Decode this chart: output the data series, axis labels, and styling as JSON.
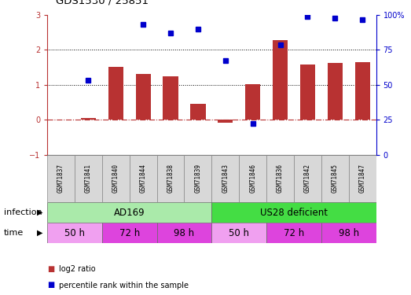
{
  "title": "GDS1530 / 25851",
  "samples": [
    "GSM71837",
    "GSM71841",
    "GSM71840",
    "GSM71844",
    "GSM71838",
    "GSM71839",
    "GSM71843",
    "GSM71846",
    "GSM71836",
    "GSM71842",
    "GSM71845",
    "GSM71847"
  ],
  "log2_ratio": [
    0.0,
    0.05,
    1.52,
    1.3,
    1.25,
    0.45,
    -0.08,
    1.02,
    2.28,
    1.58,
    1.62,
    1.65
  ],
  "percentile_rank_left": [
    null,
    1.12,
    null,
    2.72,
    2.48,
    2.6,
    1.7,
    -0.1,
    2.15,
    2.95,
    2.9,
    2.85
  ],
  "bar_color": "#b83232",
  "dot_color": "#0000cc",
  "ylim_left": [
    -1,
    3
  ],
  "yticks_left": [
    -1,
    0,
    1,
    2,
    3
  ],
  "yticks_right": [
    0,
    25,
    50,
    75,
    100
  ],
  "hlines": [
    1,
    2
  ],
  "infection_groups": [
    {
      "label": "AD169",
      "start": 0,
      "end": 6,
      "color": "#aaeaaa"
    },
    {
      "label": "US28 deficient",
      "start": 6,
      "end": 12,
      "color": "#44dd44"
    }
  ],
  "time_groups": [
    {
      "label": "50 h",
      "start": 0,
      "end": 2,
      "color": "#f0a0f0"
    },
    {
      "label": "72 h",
      "start": 2,
      "end": 4,
      "color": "#dd44dd"
    },
    {
      "label": "98 h",
      "start": 4,
      "end": 6,
      "color": "#dd44dd"
    },
    {
      "label": "50 h",
      "start": 6,
      "end": 8,
      "color": "#f0a0f0"
    },
    {
      "label": "72 h",
      "start": 8,
      "end": 10,
      "color": "#dd44dd"
    },
    {
      "label": "98 h",
      "start": 10,
      "end": 12,
      "color": "#dd44dd"
    }
  ],
  "legend_items": [
    {
      "label": "log2 ratio",
      "color": "#b83232"
    },
    {
      "label": "percentile rank within the sample",
      "color": "#0000cc"
    }
  ],
  "infection_label": "infection",
  "time_label": "time",
  "bg_color": "#ffffff"
}
